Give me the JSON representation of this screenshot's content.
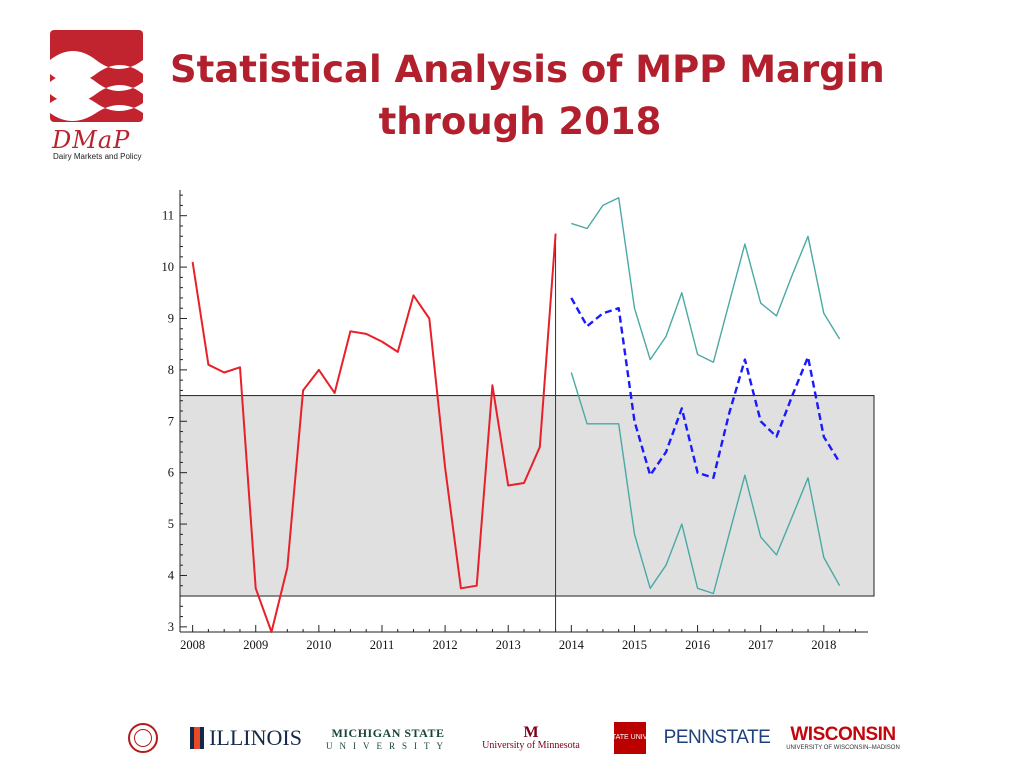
{
  "title_line1": "Statistical Analysis of MPP Margin",
  "title_line2": "through 2018",
  "logo": {
    "wordmark": "DMaP",
    "tagline": "Dairy Markets and Policy"
  },
  "colors": {
    "title": "#b2202e",
    "historical": "#e8202a",
    "forecast_mean": "#1a1aff",
    "forecast_bounds": "#4aa9a4",
    "band_fill": "#e0e0e0"
  },
  "universities": {
    "cornell": "cornell-seal",
    "illinois": "ILLINOIS",
    "msu_line1": "MICHIGAN STATE",
    "msu_line2": "UNIVERSITY",
    "umn_mark": "M",
    "umn_name": "University of Minnesota",
    "osu": "OHIO STATE UNIVERSITY",
    "pennstate": "PENNSTATE",
    "wisconsin": "WISCONSIN",
    "wisconsin_sub": "UNIVERSITY OF WISCONSIN–MADISON"
  },
  "chart_data": {
    "type": "line",
    "title": "",
    "xlabel": "",
    "ylabel": "",
    "xlim": [
      2007.8,
      2018.7
    ],
    "ylim": [
      2.9,
      11.5
    ],
    "x_ticks": [
      "2008",
      "2009",
      "2010",
      "2011",
      "2012",
      "2013",
      "2014",
      "2015",
      "2016",
      "2017",
      "2018"
    ],
    "y_ticks": [
      "3",
      "4",
      "5",
      "6",
      "7",
      "8",
      "9",
      "10",
      "11"
    ],
    "band": {
      "y_low": 3.6,
      "y_high": 7.5
    },
    "divider_x": 2013.75,
    "series": [
      {
        "style": "historical",
        "x": [
          2008.0,
          2008.25,
          2008.5,
          2008.75,
          2009.0,
          2009.25,
          2009.5,
          2009.75,
          2010.0,
          2010.25,
          2010.5,
          2010.75,
          2011.0,
          2011.25,
          2011.5,
          2011.75,
          2012.0,
          2012.25,
          2012.5,
          2012.75,
          2013.0,
          2013.25,
          2013.5,
          2013.75
        ],
        "y": [
          10.1,
          8.1,
          7.95,
          8.05,
          3.75,
          2.9,
          4.15,
          7.6,
          8.0,
          7.55,
          8.75,
          8.7,
          8.55,
          8.35,
          9.45,
          9.0,
          6.1,
          3.75,
          3.8,
          7.7,
          5.75,
          5.8,
          6.5,
          10.65
        ]
      },
      {
        "style": "forecast_upper",
        "x": [
          2014.0,
          2014.25,
          2014.5,
          2014.75,
          2015.0,
          2015.25,
          2015.5,
          2015.75,
          2016.0,
          2016.25,
          2016.5,
          2016.75,
          2017.0,
          2017.25,
          2017.5,
          2017.75,
          2018.0,
          2018.25
        ],
        "y": [
          10.85,
          10.75,
          11.2,
          11.35,
          9.2,
          8.2,
          8.65,
          9.5,
          8.3,
          8.15,
          9.3,
          10.45,
          9.3,
          9.05,
          9.85,
          10.6,
          9.1,
          8.6
        ]
      },
      {
        "style": "forecast_mean",
        "x": [
          2014.0,
          2014.25,
          2014.5,
          2014.75,
          2015.0,
          2015.25,
          2015.5,
          2015.75,
          2016.0,
          2016.25,
          2016.5,
          2016.75,
          2017.0,
          2017.25,
          2017.5,
          2017.75,
          2018.0,
          2018.25
        ],
        "y": [
          9.4,
          8.85,
          9.1,
          9.2,
          7.0,
          5.95,
          6.4,
          7.25,
          6.0,
          5.9,
          7.15,
          8.2,
          7.0,
          6.7,
          7.5,
          8.25,
          6.7,
          6.2
        ]
      },
      {
        "style": "forecast_lower",
        "x": [
          2014.0,
          2014.25,
          2014.5,
          2014.75,
          2015.0,
          2015.25,
          2015.5,
          2015.75,
          2016.0,
          2016.25,
          2016.5,
          2016.75,
          2017.0,
          2017.25,
          2017.5,
          2017.75,
          2018.0,
          2018.25
        ],
        "y": [
          7.95,
          6.95,
          6.95,
          6.95,
          4.8,
          3.75,
          4.2,
          5.0,
          3.75,
          3.65,
          4.8,
          5.95,
          4.75,
          4.4,
          5.15,
          5.9,
          4.35,
          3.8
        ]
      }
    ]
  }
}
